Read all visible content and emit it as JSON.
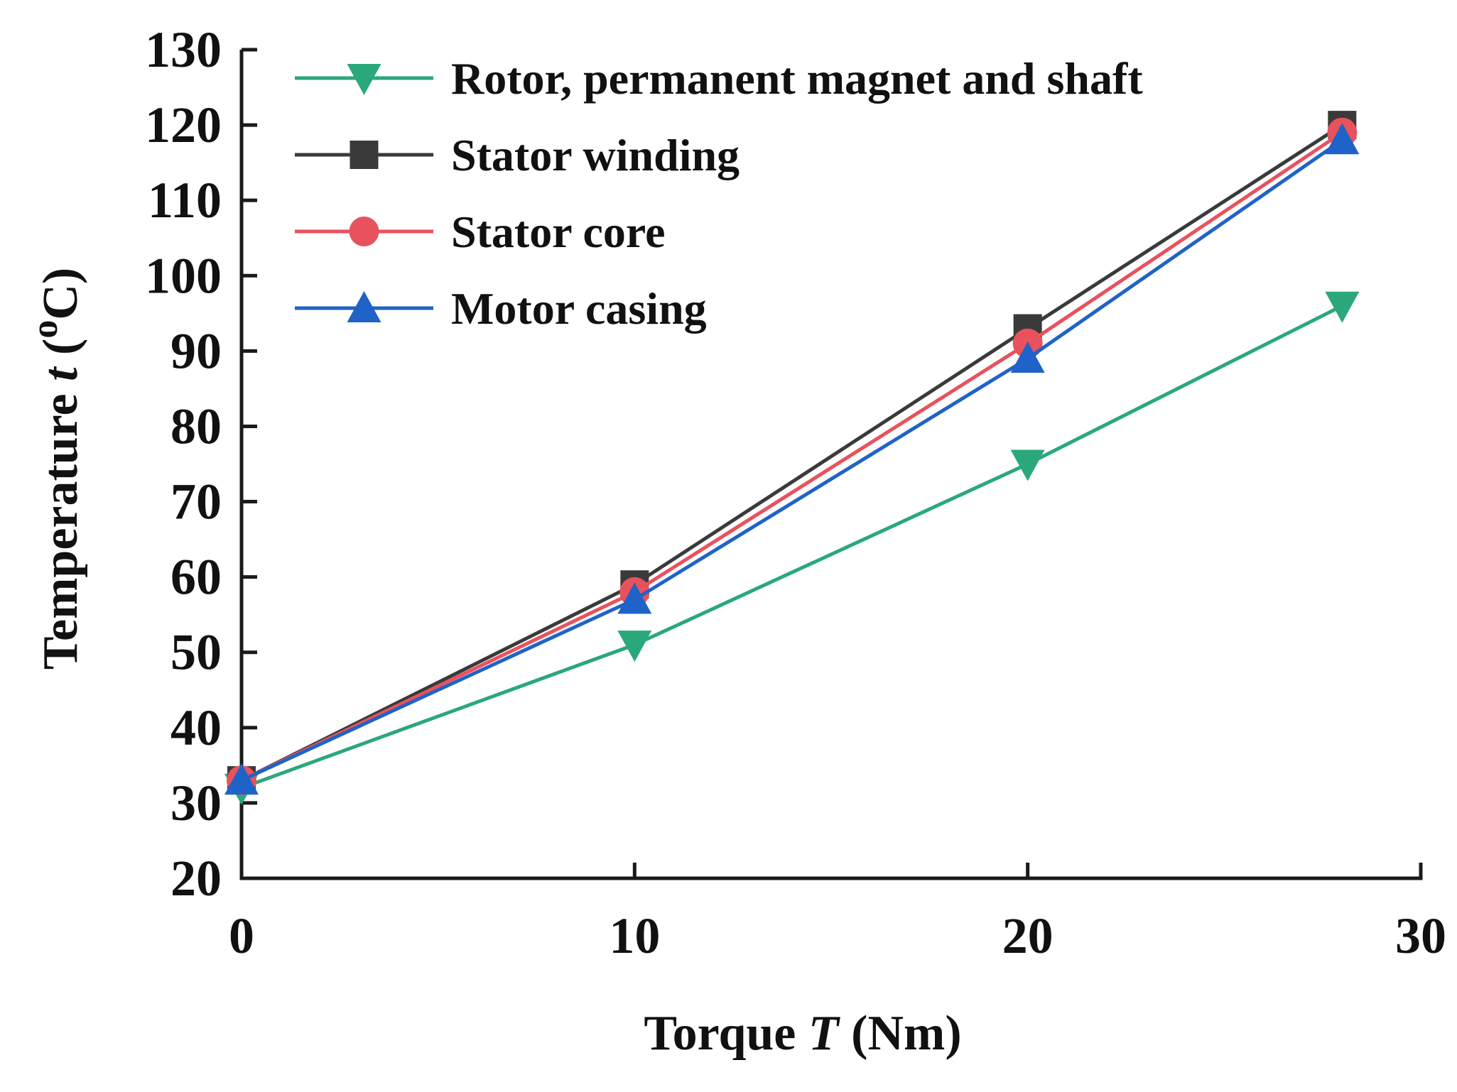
{
  "chart_data": {
    "type": "line",
    "xlabel": {
      "prefix": "Torque ",
      "symbol": "T",
      "unit": " (Nm)"
    },
    "ylabel": {
      "prefix": "Temperature ",
      "symbol": "t",
      "unit_open": " (",
      "unit_deg": "o",
      "unit_c": "C",
      "unit_close": ")"
    },
    "xlim": [
      0,
      30
    ],
    "ylim": [
      20,
      130
    ],
    "xticks": [
      "0",
      "10",
      "20",
      "30"
    ],
    "yticks": [
      "20",
      "30",
      "40",
      "50",
      "60",
      "70",
      "80",
      "90",
      "100",
      "110",
      "120",
      "130"
    ],
    "grid": false,
    "legend_position": "top-left",
    "x": [
      0,
      10,
      20,
      28
    ],
    "series": [
      {
        "name": "Rotor, permanent magnet and shaft",
        "marker": "triangle-down",
        "color": "#2aa87a",
        "values": [
          32,
          51,
          75,
          96
        ]
      },
      {
        "name": "Stator winding",
        "marker": "square",
        "color": "#3a3a3a",
        "values": [
          33,
          59,
          93,
          120
        ]
      },
      {
        "name": "Stator core",
        "marker": "circle",
        "color": "#e8525c",
        "values": [
          33,
          58,
          91,
          119
        ]
      },
      {
        "name": "Motor casing",
        "marker": "triangle-up",
        "color": "#1f63c8",
        "values": [
          33,
          57,
          89,
          118
        ]
      }
    ]
  }
}
